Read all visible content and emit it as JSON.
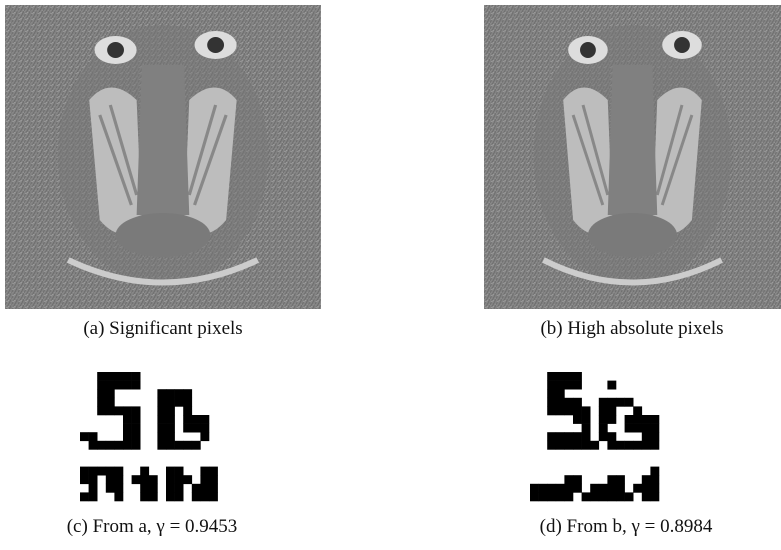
{
  "figures": [
    {
      "label": "(a)",
      "caption": "Significant pixels"
    },
    {
      "label": "(b)",
      "caption": "High absolute pixels"
    },
    {
      "label": "(c)",
      "caption": "From a, γ = 0.9453"
    },
    {
      "label": "(d)",
      "caption": "From b, γ = 0.8984"
    }
  ]
}
